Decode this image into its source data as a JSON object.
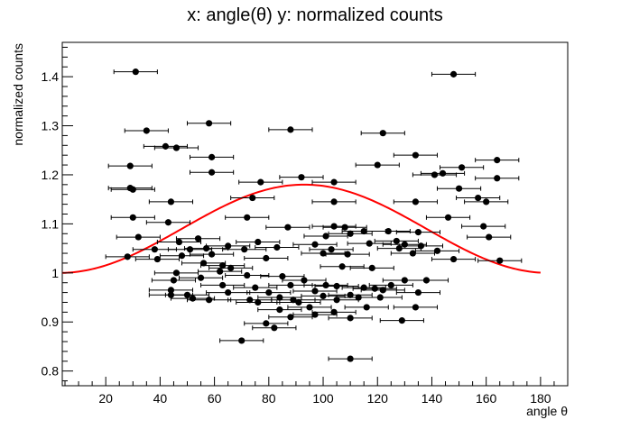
{
  "chart_data": {
    "type": "scatter",
    "title": "x: angle(θ) y: normalized counts",
    "xlabel": "angle θ",
    "ylabel": "normalized counts",
    "xlim": [
      4,
      190
    ],
    "ylim": [
      0.77,
      1.47
    ],
    "xticks": [
      20,
      40,
      60,
      80,
      100,
      120,
      140,
      160,
      180
    ],
    "yticks": [
      0.8,
      0.9,
      1,
      1.1,
      1.2,
      1.3,
      1.4
    ],
    "xtick_labels": [
      "20",
      "40",
      "60",
      "80",
      "100",
      "120",
      "140",
      "160",
      "180"
    ],
    "ytick_labels": [
      "0.8",
      "0.9",
      "1",
      "1.1",
      "1.2",
      "1.3",
      "1.4"
    ],
    "grid": false,
    "legend": "none",
    "x_error": 8.0,
    "points": [
      [
        31,
        1.41
      ],
      [
        148,
        1.405
      ],
      [
        58,
        1.305
      ],
      [
        88,
        1.292
      ],
      [
        35,
        1.29
      ],
      [
        122,
        1.285
      ],
      [
        42,
        1.258
      ],
      [
        46,
        1.255
      ],
      [
        134,
        1.24
      ],
      [
        164,
        1.23
      ],
      [
        59,
        1.236
      ],
      [
        120,
        1.22
      ],
      [
        29,
        1.218
      ],
      [
        151,
        1.215
      ],
      [
        144,
        1.203
      ],
      [
        59,
        1.205
      ],
      [
        141,
        1.2
      ],
      [
        92,
        1.195
      ],
      [
        164,
        1.193
      ],
      [
        104,
        1.185
      ],
      [
        77,
        1.185
      ],
      [
        29,
        1.173
      ],
      [
        150,
        1.172
      ],
      [
        30,
        1.17
      ],
      [
        74,
        1.153
      ],
      [
        157,
        1.153
      ],
      [
        44,
        1.145
      ],
      [
        104,
        1.145
      ],
      [
        134,
        1.145
      ],
      [
        160,
        1.145
      ],
      [
        30,
        1.113
      ],
      [
        72,
        1.113
      ],
      [
        146,
        1.113
      ],
      [
        87,
        1.093
      ],
      [
        43,
        1.103
      ],
      [
        104,
        1.095
      ],
      [
        115,
        1.085
      ],
      [
        135,
        1.083
      ],
      [
        110,
        1.08
      ],
      [
        159,
        1.095
      ],
      [
        108,
        1.093
      ],
      [
        124,
        1.085
      ],
      [
        32,
        1.073
      ],
      [
        101,
        1.075
      ],
      [
        161,
        1.073
      ],
      [
        54,
        1.07
      ],
      [
        127,
        1.065
      ],
      [
        47,
        1.063
      ],
      [
        76,
        1.063
      ],
      [
        130,
        1.058
      ],
      [
        136,
        1.055
      ],
      [
        97,
        1.058
      ],
      [
        117,
        1.06
      ],
      [
        65,
        1.055
      ],
      [
        83,
        1.052
      ],
      [
        128,
        1.05
      ],
      [
        38,
        1.048
      ],
      [
        51,
        1.048
      ],
      [
        57,
        1.05
      ],
      [
        71,
        1.048
      ],
      [
        103,
        1.048
      ],
      [
        142,
        1.045
      ],
      [
        100,
        1.04
      ],
      [
        133,
        1.04
      ],
      [
        59,
        1.038
      ],
      [
        109,
        1.038
      ],
      [
        28,
        1.033
      ],
      [
        48,
        1.035
      ],
      [
        79,
        1.03
      ],
      [
        39,
        1.028
      ],
      [
        165,
        1.025
      ],
      [
        148,
        1.028
      ],
      [
        56,
        1.02
      ],
      [
        63,
        1.015
      ],
      [
        107,
        1.013
      ],
      [
        66,
        1.01
      ],
      [
        118,
        1.01
      ],
      [
        62,
        1.003
      ],
      [
        46,
        1.0
      ],
      [
        72,
        0.995
      ],
      [
        85,
        0.993
      ],
      [
        130,
        0.985
      ],
      [
        138,
        0.985
      ],
      [
        88,
        0.975
      ],
      [
        105,
        0.973
      ],
      [
        115,
        0.97
      ],
      [
        119,
        0.968
      ],
      [
        122,
        0.965
      ],
      [
        97,
        0.963
      ],
      [
        135,
        0.96
      ],
      [
        110,
        0.955
      ],
      [
        100,
        0.953
      ],
      [
        73,
        0.945
      ],
      [
        84,
        0.95
      ],
      [
        89,
        0.945
      ],
      [
        52,
        0.948
      ],
      [
        105,
        0.945
      ],
      [
        91,
        0.94
      ],
      [
        76,
        0.94
      ],
      [
        116,
        0.93
      ],
      [
        134,
        0.93
      ],
      [
        84,
        0.925
      ],
      [
        104,
        0.92
      ],
      [
        97,
        0.915
      ],
      [
        88,
        0.91
      ],
      [
        110,
        0.908
      ],
      [
        129,
        0.903
      ],
      [
        79,
        0.897
      ],
      [
        82,
        0.888
      ],
      [
        70,
        0.862
      ],
      [
        110,
        0.825
      ],
      [
        45,
        0.985
      ],
      [
        44,
        0.965
      ],
      [
        55,
        0.99
      ],
      [
        63,
        0.975
      ],
      [
        75,
        0.97
      ],
      [
        93,
        0.985
      ],
      [
        101,
        0.975
      ],
      [
        125,
        0.975
      ],
      [
        44,
        0.955
      ],
      [
        50,
        0.955
      ],
      [
        58,
        0.945
      ],
      [
        65,
        0.96
      ],
      [
        80,
        0.96
      ],
      [
        95,
        0.93
      ],
      [
        113,
        0.95
      ],
      [
        121,
        0.95
      ]
    ],
    "fit_curve": {
      "baseline": 1.0,
      "amplitude": 0.18,
      "center": 93,
      "x_start": 4,
      "x_end": 180,
      "color": "#ff0000"
    },
    "marker_color": "#000000"
  }
}
